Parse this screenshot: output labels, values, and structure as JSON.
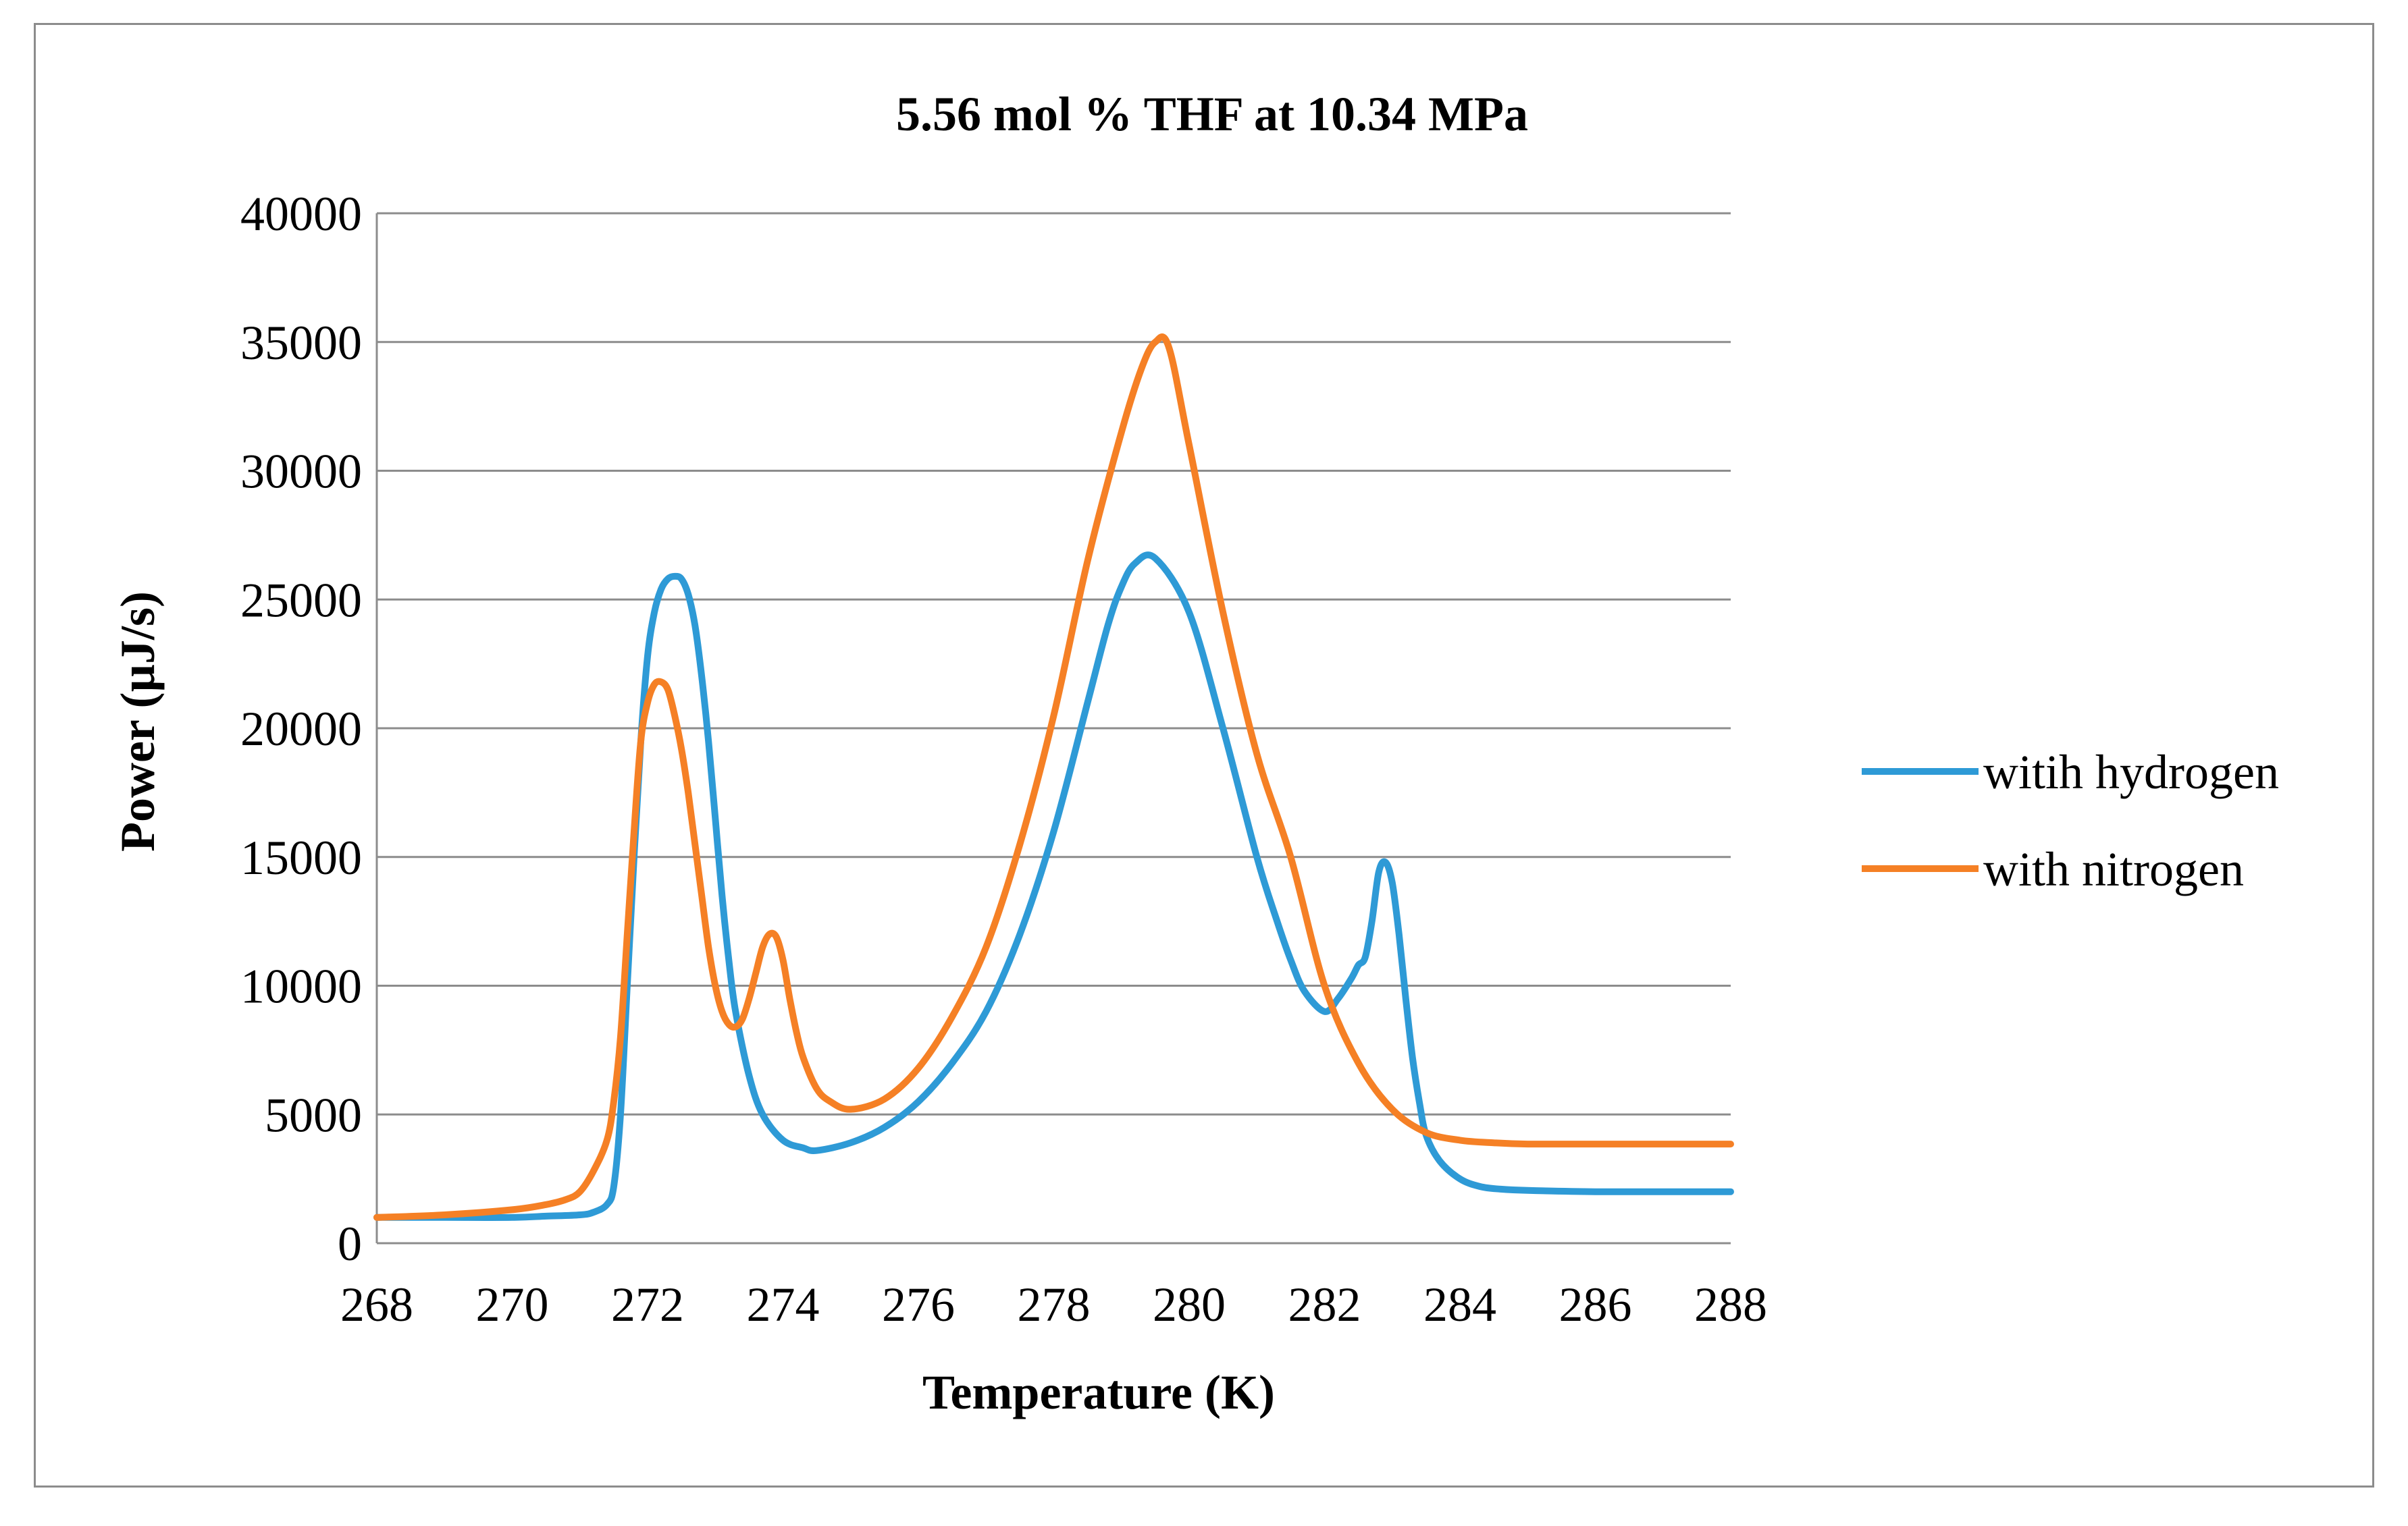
{
  "chart_data": {
    "type": "line",
    "title": "5.56 mol % THF at 10.34 MPa",
    "xlabel": "Temperature (K)",
    "ylabel": "Power (µJ/s)",
    "xlim": [
      268,
      288
    ],
    "ylim": [
      0,
      40000
    ],
    "x_ticks": [
      268,
      270,
      272,
      274,
      276,
      278,
      280,
      282,
      284,
      286,
      288
    ],
    "x_tick_labels": [
      "268",
      "270",
      "272",
      "274",
      "276",
      "278",
      "280",
      "282",
      "284",
      "286",
      "288"
    ],
    "y_ticks": [
      0,
      5000,
      10000,
      15000,
      20000,
      25000,
      30000,
      35000,
      40000
    ],
    "y_tick_labels": [
      "0",
      "5000",
      "10000",
      "15000",
      "20000",
      "25000",
      "30000",
      "35000",
      "40000"
    ],
    "grid": "horizontal",
    "legend_position": "right",
    "series": [
      {
        "name": "witih hydrogen",
        "color": "#2E9AD6",
        "x": [
          268,
          269,
          270,
          270.5,
          271,
          271.2,
          271.4,
          271.5,
          271.6,
          271.7,
          271.8,
          271.9,
          272,
          272.1,
          272.2,
          272.3,
          272.4,
          272.5,
          272.6,
          272.7,
          272.8,
          272.9,
          273,
          273.1,
          273.2,
          273.3,
          273.5,
          273.7,
          274,
          274.3,
          274.5,
          275,
          275.5,
          276,
          276.5,
          277,
          277.5,
          278,
          278.5,
          278.8,
          279,
          279.2,
          279.5,
          280,
          280.5,
          281,
          281.3,
          281.5,
          281.7,
          282,
          282.2,
          282.4,
          282.5,
          282.6,
          282.7,
          282.8,
          282.9,
          283,
          283.1,
          283.2,
          283.3,
          283.4,
          283.5,
          283.7,
          284,
          284.3,
          284.6,
          285,
          286,
          287,
          288
        ],
        "values": [
          1000,
          1000,
          1000,
          1050,
          1100,
          1200,
          1500,
          2200,
          5000,
          10000,
          15000,
          19500,
          22800,
          24500,
          25400,
          25800,
          25900,
          25800,
          25200,
          24000,
          22000,
          19500,
          16500,
          13500,
          11000,
          9000,
          6500,
          5000,
          4000,
          3700,
          3600,
          3900,
          4500,
          5500,
          7000,
          9000,
          12000,
          16000,
          21000,
          24000,
          25500,
          26400,
          26600,
          24500,
          20000,
          15000,
          12500,
          11000,
          9800,
          9000,
          9500,
          10300,
          10800,
          11100,
          12500,
          14400,
          14800,
          14000,
          12000,
          9500,
          7200,
          5500,
          4200,
          3200,
          2500,
          2200,
          2100,
          2050,
          2000,
          2000,
          2000
        ]
      },
      {
        "name": "with nitrogen",
        "color": "#F58025",
        "x": [
          268,
          269,
          270,
          270.5,
          270.8,
          271,
          271.2,
          271.4,
          271.5,
          271.6,
          271.7,
          271.8,
          271.9,
          272,
          272.1,
          272.2,
          272.3,
          272.4,
          272.5,
          272.6,
          272.7,
          272.8,
          272.9,
          273,
          273.1,
          273.2,
          273.3,
          273.4,
          273.5,
          273.6,
          273.7,
          273.8,
          273.9,
          274,
          274.1,
          274.2,
          274.3,
          274.5,
          274.7,
          275,
          275.5,
          276,
          276.5,
          277,
          277.5,
          278,
          278.5,
          279,
          279.3,
          279.5,
          279.7,
          280,
          280.5,
          281,
          281.5,
          282,
          282.5,
          283,
          283.5,
          284,
          284.5,
          285,
          286,
          287,
          288
        ],
        "values": [
          1000,
          1100,
          1300,
          1500,
          1700,
          2000,
          2800,
          4000,
          5500,
          8000,
          12000,
          16000,
          19500,
          21000,
          21700,
          21800,
          21500,
          20500,
          19200,
          17500,
          15500,
          13500,
          11500,
          10000,
          9000,
          8500,
          8400,
          8700,
          9500,
          10500,
          11500,
          12000,
          11900,
          11000,
          9500,
          8200,
          7200,
          6000,
          5500,
          5200,
          5600,
          6800,
          8800,
          11500,
          15500,
          20500,
          26500,
          31500,
          34000,
          35000,
          34800,
          31000,
          24500,
          19000,
          15000,
          10000,
          7000,
          5200,
          4300,
          4000,
          3900,
          3850,
          3850,
          3850,
          3850
        ]
      }
    ]
  }
}
